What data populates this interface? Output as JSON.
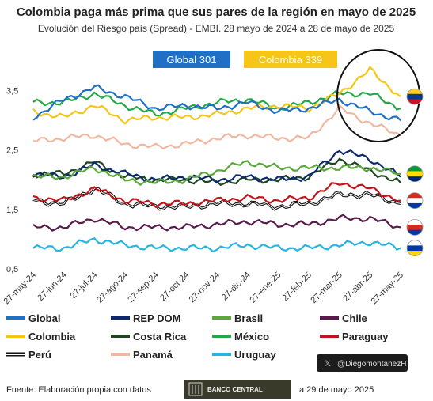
{
  "chart_data": {
    "type": "line",
    "title": "Colombia paga más prima que sus pares de la región en mayo de 2025",
    "subtitle": "Evolución del Riesgo país (Spread) - EMBI. 28 mayo de 2024 a 28 de mayo de 2025",
    "ylim": [
      0.5,
      4.2
    ],
    "yticks": [
      "0,5",
      "1,5",
      "2,5",
      "3,5"
    ],
    "x_tick_labels": [
      "27-may-24",
      "27-jun-24",
      "27-jul-24",
      "27-ago-24",
      "27-sep-24",
      "27-oct-24",
      "27-nov-24",
      "27-dic-24",
      "27-ene-25",
      "27-feb-25",
      "27-mar-25",
      "27-abr-25",
      "27-may-25"
    ],
    "badges": [
      {
        "label": "Global 301",
        "color": "#1f6fc5"
      },
      {
        "label": "Colombia 339",
        "color": "#f5c518"
      }
    ],
    "series": [
      {
        "name": "Global",
        "color": "#1f6fc5",
        "values": [
          3.05,
          3.35,
          3.55,
          3.4,
          3.2,
          3.25,
          3.2,
          3.3,
          3.15,
          3.2,
          3.35,
          3.15,
          3.0
        ]
      },
      {
        "name": "Colombia",
        "color": "#f5c518",
        "values": [
          3.15,
          3.05,
          3.25,
          3.0,
          3.05,
          3.05,
          3.1,
          3.2,
          3.25,
          3.2,
          3.45,
          3.85,
          3.4
        ]
      },
      {
        "name": "Perú",
        "color": "#111111",
        "values": [
          1.65,
          1.6,
          1.85,
          1.6,
          1.55,
          1.55,
          1.6,
          1.6,
          1.55,
          1.6,
          1.75,
          1.75,
          1.6
        ]
      },
      {
        "name": "REP DOM",
        "color": "#0d2a6e",
        "values": [
          2.1,
          2.05,
          2.25,
          2.1,
          2.0,
          2.05,
          2.0,
          2.05,
          2.0,
          2.05,
          2.5,
          2.35,
          2.05
        ]
      },
      {
        "name": "Costa Rica",
        "color": "#1e4620",
        "values": [
          2.1,
          2.1,
          2.3,
          2.05,
          2.0,
          2.0,
          1.95,
          2.0,
          2.0,
          2.05,
          2.35,
          2.15,
          1.95
        ]
      },
      {
        "name": "Panamá",
        "color": "#f0b8a0",
        "values": [
          2.65,
          2.7,
          2.75,
          2.6,
          2.55,
          2.6,
          2.7,
          2.75,
          2.7,
          2.7,
          3.2,
          2.95,
          2.75
        ]
      },
      {
        "name": "Brasil",
        "color": "#5aa83a",
        "values": [
          2.05,
          2.05,
          2.2,
          2.0,
          1.95,
          2.0,
          2.15,
          2.3,
          2.2,
          2.2,
          2.2,
          2.2,
          2.1
        ]
      },
      {
        "name": "México",
        "color": "#22a848",
        "values": [
          3.3,
          3.3,
          3.45,
          3.25,
          3.1,
          3.2,
          3.3,
          3.35,
          3.2,
          3.3,
          3.45,
          3.45,
          3.2
        ]
      },
      {
        "name": "Uruguay",
        "color": "#28b4e0",
        "values": [
          0.85,
          0.85,
          1.0,
          0.9,
          0.85,
          0.85,
          0.85,
          0.9,
          0.85,
          0.85,
          0.9,
          0.95,
          0.85
        ]
      },
      {
        "name": "Chile",
        "color": "#5a1a4a",
        "values": [
          1.2,
          1.2,
          1.35,
          1.2,
          1.2,
          1.2,
          1.25,
          1.3,
          1.25,
          1.25,
          1.35,
          1.35,
          1.2
        ]
      },
      {
        "name": "Paraguay",
        "color": "#c0141c",
        "values": [
          1.7,
          1.65,
          1.85,
          1.65,
          1.6,
          1.6,
          1.65,
          1.7,
          1.65,
          1.7,
          1.95,
          1.85,
          1.65
        ]
      }
    ],
    "legend_order": [
      "Global",
      "REP DOM",
      "Brasil",
      "Chile",
      "Colombia",
      "Costa Rica",
      "México",
      "Paraguay",
      "Perú",
      "Panamá",
      "Uruguay"
    ],
    "legend_placement": "bottom"
  },
  "footer": {
    "source": "Fuente: Elaboración propia con datos",
    "bank": "BANCO CENTRAL",
    "date": "a 29 de mayo 2025",
    "handle": "@DiegomontanezH",
    "x_mark": "𝕏"
  },
  "flags": [
    {
      "country": "Colombia",
      "value": 3.4,
      "colors": [
        "#fcd116",
        "#003893",
        "#ce1126"
      ]
    },
    {
      "country": "Brasil",
      "value": 2.1,
      "colors": [
        "#009c3b",
        "#ffdf00",
        "#002776"
      ]
    },
    {
      "country": "Paraguay",
      "value": 1.65,
      "colors": [
        "#d52b1e",
        "#ffffff",
        "#0038a8"
      ]
    },
    {
      "country": "Chile",
      "value": 1.2,
      "colors": [
        "#ffffff",
        "#d52b1e",
        "#0039a6"
      ]
    },
    {
      "country": "Uruguay",
      "value": 0.85,
      "colors": [
        "#ffffff",
        "#0038a8",
        "#fcd116"
      ]
    }
  ]
}
